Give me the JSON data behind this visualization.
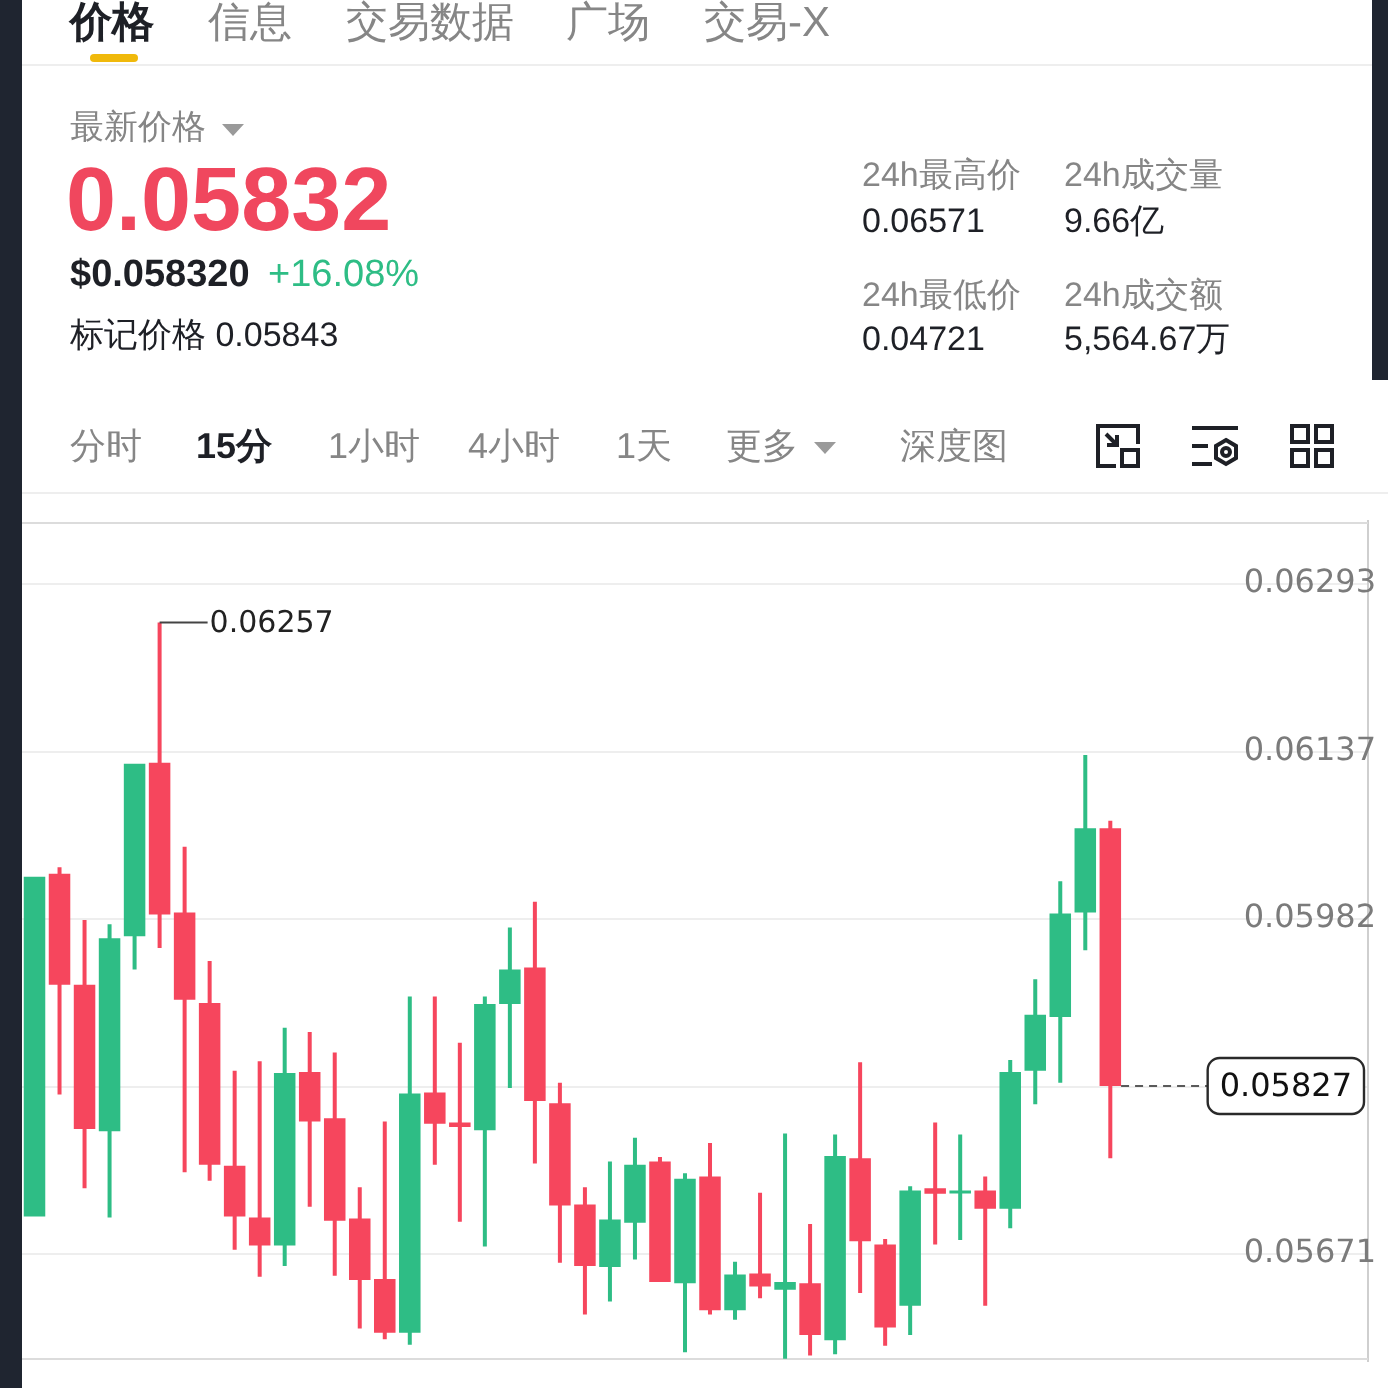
{
  "chart_data": {
    "type": "candlestick",
    "categories": [
      null,
      null,
      null,
      null,
      null,
      null,
      null,
      null,
      null,
      null,
      null,
      null,
      null,
      null,
      null,
      null,
      null,
      null,
      null,
      null,
      null,
      null,
      null,
      null,
      null,
      null,
      null,
      null,
      null,
      null,
      null,
      null,
      null,
      null,
      null,
      null,
      null,
      null,
      null,
      null,
      null,
      null,
      null,
      null
    ],
    "ohlc": [
      [
        0.05706,
        0.06021,
        0.05706,
        0.06021
      ],
      [
        0.06024,
        0.0603,
        0.05819,
        0.05921
      ],
      [
        0.05921,
        0.05981,
        0.05732,
        0.05787
      ],
      [
        0.05785,
        0.05977,
        0.05705,
        0.05964
      ],
      [
        0.05966,
        0.06126,
        0.05935,
        0.06126
      ],
      [
        0.06127,
        0.06257,
        0.05955,
        0.05986
      ],
      [
        0.05988,
        0.06049,
        0.05747,
        0.05907
      ],
      [
        0.05904,
        0.05943,
        0.05739,
        0.05754
      ],
      [
        0.05753,
        0.05841,
        0.05675,
        0.05706
      ],
      [
        0.05705,
        0.0585,
        0.0565,
        0.05679
      ],
      [
        0.05679,
        0.05881,
        0.0566,
        0.05839
      ],
      [
        0.0584,
        0.05877,
        0.05715,
        0.05794
      ],
      [
        0.05797,
        0.05858,
        0.05651,
        0.05702
      ],
      [
        0.05704,
        0.05733,
        0.05602,
        0.05647
      ],
      [
        0.05648,
        0.05794,
        0.05592,
        0.05598
      ],
      [
        0.05598,
        0.0591,
        0.05587,
        0.0582
      ],
      [
        0.05821,
        0.0591,
        0.05754,
        0.05792
      ],
      [
        0.05793,
        0.05867,
        0.05701,
        0.05789
      ],
      [
        0.05786,
        0.0591,
        0.05678,
        0.05903
      ],
      [
        0.05903,
        0.05974,
        0.05825,
        0.05935
      ],
      [
        0.05937,
        0.05998,
        0.05755,
        0.05813
      ],
      [
        0.05811,
        0.0583,
        0.05663,
        0.05716
      ],
      [
        0.05717,
        0.05733,
        0.05615,
        0.0566
      ],
      [
        0.05659,
        0.05757,
        0.05627,
        0.05703
      ],
      [
        0.057,
        0.05779,
        0.05666,
        0.05754
      ],
      [
        0.05757,
        0.05761,
        0.05645,
        0.05645
      ],
      [
        0.05644,
        0.05746,
        0.0558,
        0.05741
      ],
      [
        0.05743,
        0.05774,
        0.05615,
        0.05619
      ],
      [
        0.05619,
        0.05664,
        0.0561,
        0.05652
      ],
      [
        0.05653,
        0.05728,
        0.0563,
        0.05641
      ],
      [
        0.05638,
        0.05783,
        0.05574,
        0.05645
      ],
      [
        0.05644,
        0.05699,
        0.05577,
        0.05596
      ],
      [
        0.05591,
        0.05782,
        0.05578,
        0.05762
      ],
      [
        0.0576,
        0.05849,
        0.05635,
        0.05683
      ],
      [
        0.0568,
        0.05685,
        0.05586,
        0.05603
      ],
      [
        0.05623,
        0.05734,
        0.05596,
        0.0573
      ],
      [
        0.05732,
        0.05793,
        0.0568,
        0.05727
      ],
      [
        0.05728,
        0.05782,
        0.05684,
        0.0573
      ],
      [
        0.0573,
        0.05743,
        0.05623,
        0.05713
      ],
      [
        0.05713,
        0.05851,
        0.05695,
        0.0584
      ],
      [
        0.05841,
        0.05926,
        0.0581,
        0.05893
      ],
      [
        0.05891,
        0.06017,
        0.0583,
        0.05987
      ],
      [
        0.05988,
        0.06134,
        0.05953,
        0.06066
      ],
      [
        0.06066,
        0.06073,
        0.0576,
        0.05827
      ]
    ],
    "colors": [
      "#2ebd85",
      "#f6465d",
      "#f6465d",
      "#2ebd85",
      "#2ebd85",
      "#f6465d",
      "#f6465d",
      "#f6465d",
      "#f6465d",
      "#f6465d",
      "#2ebd85",
      "#f6465d",
      "#f6465d",
      "#f6465d",
      "#f6465d",
      "#2ebd85",
      "#f6465d",
      "#f6465d",
      "#2ebd85",
      "#2ebd85",
      "#f6465d",
      "#f6465d",
      "#f6465d",
      "#2ebd85",
      "#2ebd85",
      "#f6465d",
      "#2ebd85",
      "#f6465d",
      "#2ebd85",
      "#f6465d",
      "#2ebd85",
      "#f6465d",
      "#2ebd85",
      "#f6465d",
      "#f6465d",
      "#2ebd85",
      "#f6465d",
      "#2ebd85",
      "#f6465d",
      "#2ebd85",
      "#2ebd85",
      "#2ebd85",
      "#2ebd85",
      "#f6465d"
    ],
    "ylim": [
      0.05572,
      0.06351
    ],
    "yticks": [
      0.06293,
      0.06137,
      0.05982,
      {
        "value": 0.05826,
        "label": null
      },
      0.05671
    ],
    "grid": "y",
    "tick_labels": "y",
    "ref_lines": [
      {
        "axis": "y",
        "value": 0.05827,
        "label": "0.05827",
        "line_style": "dashed",
        "color": "#5a5a5a"
      }
    ],
    "annotations": [
      "价格",
      "信息",
      "交易数据",
      "广场",
      "交易-X",
      "最新价格",
      "0.05832",
      "$0.058320",
      "+16.08%",
      "标记价格 0.05843",
      "24h最高价",
      "0.06571",
      "24h成交量",
      "9.66亿",
      "24h最低价",
      "0.04721",
      "24h成交额",
      "5,564.67万",
      "分时",
      "15分",
      "1小时",
      "4小时",
      "1天",
      "更多",
      "深度图",
      "0.06257"
    ]
  }
}
